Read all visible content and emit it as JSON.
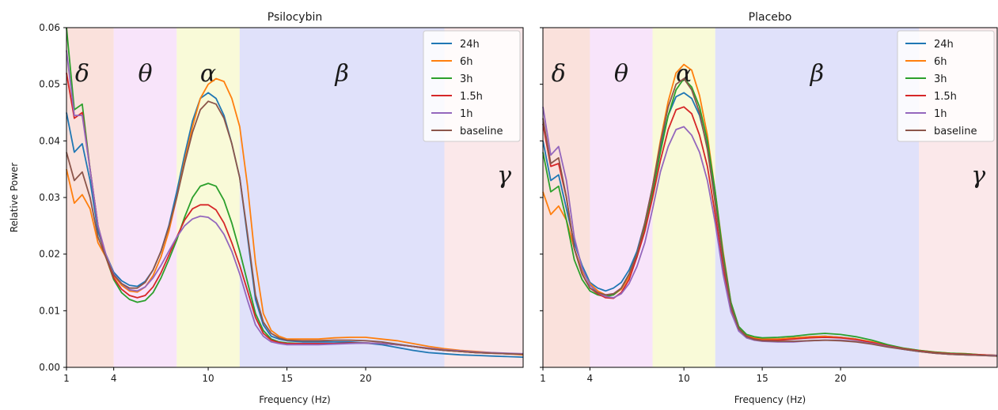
{
  "figure": {
    "ylabel": "Relative Power"
  },
  "chart_data": [
    {
      "type": "line",
      "title": "Psilocybin",
      "xlabel": "Frequency (Hz)",
      "ylabel": "Relative Power",
      "xlim": [
        1,
        30
      ],
      "ylim": [
        0,
        0.06
      ],
      "xticks": [
        1,
        4,
        10,
        15,
        20
      ],
      "yticks": [
        0.0,
        0.01,
        0.02,
        0.03,
        0.04,
        0.05,
        0.06
      ],
      "legend_position": "top-right",
      "bands": [
        {
          "symbol": "δ",
          "from": 1,
          "to": 4,
          "color": "#f6c9c0",
          "label_x": 2
        },
        {
          "symbol": "θ",
          "from": 4,
          "to": 8,
          "color": "#f3cdf6",
          "label_x": 6
        },
        {
          "symbol": "α",
          "from": 8,
          "to": 12,
          "color": "#f4f6b8",
          "label_x": 10
        },
        {
          "symbol": "β",
          "from": 12,
          "to": 25,
          "color": "#c7c9f5",
          "label_x": 18.5
        },
        {
          "symbol": "γ",
          "from": 25,
          "to": 30,
          "color": "#f7d6d9",
          "label_x": 28.8,
          "label_y": 0.0325
        }
      ],
      "x": [
        1,
        1.5,
        2,
        2.5,
        3,
        3.5,
        4,
        4.5,
        5,
        5.5,
        6,
        6.5,
        7,
        7.5,
        8,
        8.5,
        9,
        9.5,
        10,
        10.5,
        11,
        11.5,
        12,
        12.5,
        13,
        13.5,
        14,
        14.5,
        15,
        16,
        17,
        18,
        19,
        20,
        21,
        22,
        23,
        24,
        25,
        26,
        27,
        28,
        29,
        30
      ],
      "series": [
        {
          "name": "24h",
          "color": "#1f77b4",
          "values": [
            0.045,
            0.038,
            0.0395,
            0.033,
            0.024,
            0.02,
            0.0168,
            0.0153,
            0.0145,
            0.0143,
            0.0152,
            0.0172,
            0.0205,
            0.025,
            0.031,
            0.0375,
            0.0435,
            0.0475,
            0.0485,
            0.0475,
            0.0445,
            0.0395,
            0.0335,
            0.023,
            0.012,
            0.0075,
            0.0055,
            0.005,
            0.0047,
            0.0045,
            0.0045,
            0.0045,
            0.0045,
            0.0043,
            0.004,
            0.0035,
            0.003,
            0.0026,
            0.0024,
            0.0022,
            0.0021,
            0.002,
            0.0019,
            0.0018
          ]
        },
        {
          "name": "6h",
          "color": "#ff7f0e",
          "values": [
            0.035,
            0.029,
            0.0305,
            0.028,
            0.022,
            0.0195,
            0.0162,
            0.0145,
            0.0135,
            0.0133,
            0.0142,
            0.0162,
            0.0195,
            0.024,
            0.03,
            0.0365,
            0.0425,
            0.0475,
            0.05,
            0.051,
            0.0505,
            0.0475,
            0.0425,
            0.032,
            0.0185,
            0.0095,
            0.0065,
            0.0055,
            0.005,
            0.005,
            0.005,
            0.0052,
            0.0053,
            0.0053,
            0.005,
            0.0047,
            0.0042,
            0.0037,
            0.0033,
            0.003,
            0.0028,
            0.0026,
            0.0024,
            0.0022
          ]
        },
        {
          "name": "3h",
          "color": "#2ca02c",
          "values": [
            0.06,
            0.0455,
            0.0465,
            0.035,
            0.025,
            0.0195,
            0.0155,
            0.0132,
            0.012,
            0.0115,
            0.0118,
            0.0132,
            0.0158,
            0.019,
            0.0225,
            0.0265,
            0.03,
            0.032,
            0.0325,
            0.032,
            0.0295,
            0.0255,
            0.0205,
            0.015,
            0.0095,
            0.0065,
            0.005,
            0.0045,
            0.0043,
            0.0042,
            0.0042,
            0.0042,
            0.0043,
            0.0043,
            0.0042,
            0.004,
            0.0037,
            0.0033,
            0.003,
            0.0028,
            0.0026,
            0.0025,
            0.0024,
            0.0023
          ]
        },
        {
          "name": "1.5h",
          "color": "#d62728",
          "values": [
            0.052,
            0.044,
            0.045,
            0.035,
            0.025,
            0.0195,
            0.0158,
            0.0138,
            0.0127,
            0.0123,
            0.0127,
            0.0142,
            0.0167,
            0.0198,
            0.023,
            0.026,
            0.028,
            0.0287,
            0.0287,
            0.0278,
            0.0255,
            0.022,
            0.018,
            0.0135,
            0.0088,
            0.006,
            0.0048,
            0.0044,
            0.0042,
            0.0042,
            0.0042,
            0.0042,
            0.0043,
            0.0043,
            0.0042,
            0.004,
            0.0037,
            0.0033,
            0.003,
            0.0028,
            0.0026,
            0.0025,
            0.0024,
            0.0023
          ]
        },
        {
          "name": "1h",
          "color": "#9467bd",
          "values": [
            0.056,
            0.0445,
            0.0445,
            0.035,
            0.025,
            0.02,
            0.0165,
            0.0148,
            0.0137,
            0.0135,
            0.0142,
            0.0158,
            0.018,
            0.0205,
            0.023,
            0.025,
            0.0262,
            0.0267,
            0.0265,
            0.0255,
            0.0235,
            0.0205,
            0.0165,
            0.0118,
            0.0075,
            0.0055,
            0.0045,
            0.0042,
            0.004,
            0.004,
            0.004,
            0.0041,
            0.0042,
            0.0043,
            0.0042,
            0.004,
            0.0037,
            0.0034,
            0.0031,
            0.0029,
            0.0027,
            0.0026,
            0.0025,
            0.0024
          ]
        },
        {
          "name": "baseline",
          "color": "#8c564b",
          "values": [
            0.038,
            0.033,
            0.0345,
            0.03,
            0.023,
            0.0195,
            0.0163,
            0.0148,
            0.014,
            0.014,
            0.015,
            0.0172,
            0.0205,
            0.0248,
            0.03,
            0.036,
            0.0415,
            0.0455,
            0.047,
            0.0465,
            0.044,
            0.0395,
            0.0335,
            0.0235,
            0.0128,
            0.008,
            0.006,
            0.0052,
            0.0048,
            0.0047,
            0.0047,
            0.0048,
            0.0048,
            0.0047,
            0.0045,
            0.0041,
            0.0037,
            0.0033,
            0.003,
            0.0028,
            0.0026,
            0.0025,
            0.0024,
            0.0023
          ]
        }
      ]
    },
    {
      "type": "line",
      "title": "Placebo",
      "xlabel": "Frequency (Hz)",
      "ylabel": "",
      "xlim": [
        1,
        30
      ],
      "ylim": [
        0,
        0.06
      ],
      "xticks": [
        1,
        4,
        10,
        15,
        20
      ],
      "yticks": [
        0.0,
        0.01,
        0.02,
        0.03,
        0.04,
        0.05,
        0.06
      ],
      "legend_position": "top-right",
      "bands": [
        {
          "symbol": "δ",
          "from": 1,
          "to": 4,
          "color": "#f6c9c0",
          "label_x": 2
        },
        {
          "symbol": "θ",
          "from": 4,
          "to": 8,
          "color": "#f3cdf6",
          "label_x": 6
        },
        {
          "symbol": "α",
          "from": 8,
          "to": 12,
          "color": "#f4f6b8",
          "label_x": 10
        },
        {
          "symbol": "β",
          "from": 12,
          "to": 25,
          "color": "#c7c9f5",
          "label_x": 18.5
        },
        {
          "symbol": "γ",
          "from": 25,
          "to": 30,
          "color": "#f7d6d9",
          "label_x": 28.8,
          "label_y": 0.0325
        }
      ],
      "x": [
        1,
        1.5,
        2,
        2.5,
        3,
        3.5,
        4,
        4.5,
        5,
        5.5,
        6,
        6.5,
        7,
        7.5,
        8,
        8.5,
        9,
        9.5,
        10,
        10.5,
        11,
        11.5,
        12,
        12.5,
        13,
        13.5,
        14,
        14.5,
        15,
        16,
        17,
        18,
        19,
        20,
        21,
        22,
        23,
        24,
        25,
        26,
        27,
        28,
        29,
        30
      ],
      "series": [
        {
          "name": "24h",
          "color": "#1f77b4",
          "values": [
            0.04,
            0.033,
            0.034,
            0.028,
            0.022,
            0.018,
            0.015,
            0.014,
            0.0135,
            0.014,
            0.015,
            0.0172,
            0.0205,
            0.0255,
            0.032,
            0.039,
            0.0445,
            0.0478,
            0.0485,
            0.0475,
            0.0445,
            0.039,
            0.03,
            0.0195,
            0.011,
            0.007,
            0.0056,
            0.0052,
            0.005,
            0.005,
            0.0052,
            0.0054,
            0.0055,
            0.0053,
            0.005,
            0.0044,
            0.0038,
            0.0032,
            0.0028,
            0.0025,
            0.0023,
            0.0022,
            0.0021,
            0.002
          ]
        },
        {
          "name": "6h",
          "color": "#ff7f0e",
          "values": [
            0.031,
            0.027,
            0.0285,
            0.026,
            0.021,
            0.017,
            0.0148,
            0.0135,
            0.0128,
            0.0128,
            0.0138,
            0.016,
            0.0195,
            0.025,
            0.032,
            0.04,
            0.047,
            0.052,
            0.0535,
            0.0525,
            0.048,
            0.041,
            0.031,
            0.0205,
            0.0115,
            0.0072,
            0.0057,
            0.0052,
            0.005,
            0.005,
            0.0052,
            0.0054,
            0.0055,
            0.0053,
            0.005,
            0.0045,
            0.0039,
            0.0034,
            0.003,
            0.0027,
            0.0025,
            0.0024,
            0.0022,
            0.0021
          ]
        },
        {
          "name": "3h",
          "color": "#2ca02c",
          "values": [
            0.038,
            0.031,
            0.032,
            0.026,
            0.019,
            0.0155,
            0.0135,
            0.0128,
            0.0125,
            0.0128,
            0.014,
            0.0165,
            0.02,
            0.025,
            0.031,
            0.038,
            0.0445,
            0.049,
            0.051,
            0.0495,
            0.046,
            0.04,
            0.031,
            0.02,
            0.0115,
            0.0072,
            0.0058,
            0.0054,
            0.0052,
            0.0053,
            0.0055,
            0.0058,
            0.006,
            0.0058,
            0.0054,
            0.0048,
            0.004,
            0.0034,
            0.003,
            0.0027,
            0.0025,
            0.0024,
            0.0022,
            0.0021
          ]
        },
        {
          "name": "1.5h",
          "color": "#d62728",
          "values": [
            0.043,
            0.0355,
            0.036,
            0.03,
            0.021,
            0.0165,
            0.014,
            0.013,
            0.0123,
            0.0122,
            0.0132,
            0.0155,
            0.0195,
            0.024,
            0.03,
            0.0365,
            0.042,
            0.0455,
            0.046,
            0.0448,
            0.041,
            0.0355,
            0.027,
            0.0175,
            0.0105,
            0.0068,
            0.0055,
            0.005,
            0.0048,
            0.0048,
            0.005,
            0.0052,
            0.0053,
            0.0052,
            0.0049,
            0.0044,
            0.0038,
            0.0033,
            0.0029,
            0.0026,
            0.0024,
            0.0023,
            0.0022,
            0.0021
          ]
        },
        {
          "name": "1h",
          "color": "#9467bd",
          "values": [
            0.046,
            0.0375,
            0.039,
            0.033,
            0.023,
            0.0175,
            0.0145,
            0.0132,
            0.0125,
            0.0123,
            0.013,
            0.0148,
            0.0178,
            0.022,
            0.028,
            0.0345,
            0.039,
            0.042,
            0.0425,
            0.041,
            0.038,
            0.033,
            0.0255,
            0.0165,
            0.0098,
            0.0064,
            0.0052,
            0.0048,
            0.0046,
            0.0045,
            0.0045,
            0.0047,
            0.0048,
            0.0048,
            0.0046,
            0.0042,
            0.0037,
            0.0032,
            0.0028,
            0.0025,
            0.0023,
            0.0022,
            0.0021,
            0.0021
          ]
        },
        {
          "name": "baseline",
          "color": "#8c564b",
          "values": [
            0.044,
            0.036,
            0.037,
            0.03,
            0.021,
            0.0165,
            0.014,
            0.0132,
            0.0128,
            0.013,
            0.014,
            0.0165,
            0.02,
            0.0255,
            0.032,
            0.0395,
            0.046,
            0.05,
            0.051,
            0.049,
            0.045,
            0.0385,
            0.029,
            0.019,
            0.0108,
            0.0068,
            0.0054,
            0.0049,
            0.0047,
            0.0046,
            0.0046,
            0.0047,
            0.0048,
            0.0047,
            0.0045,
            0.0041,
            0.0036,
            0.0032,
            0.0028,
            0.0025,
            0.0023,
            0.0022,
            0.0021,
            0.002
          ]
        }
      ]
    }
  ]
}
